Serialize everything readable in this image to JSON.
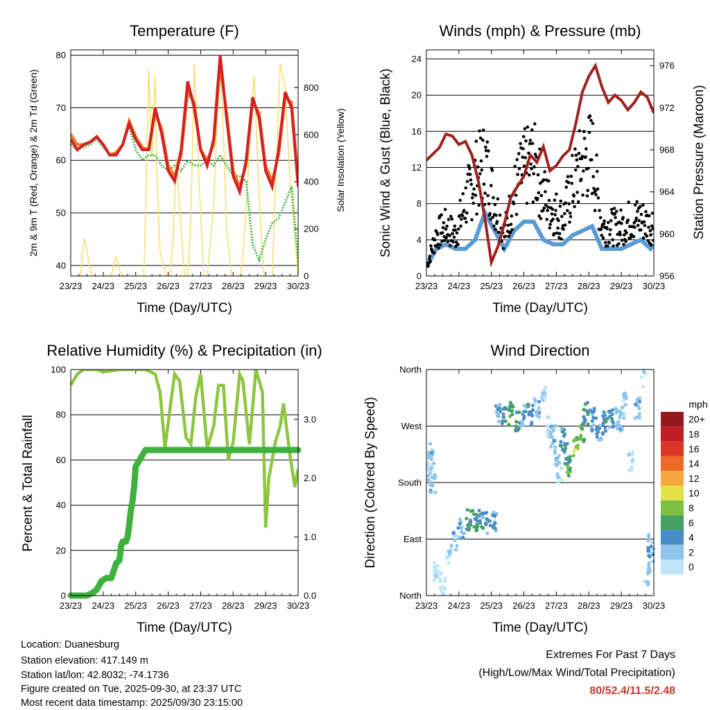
{
  "colors": {
    "temp2m": "#d42020",
    "temp9m": "#f07a2a",
    "dewpoint": "#3fb13f",
    "solar": "#f5e070",
    "wind": "#5a9bd4",
    "gust": "#000000",
    "pressure": "#a02020",
    "humidity": "#8cc63f",
    "precip": "#3fb13f",
    "extremes": "#c0392b"
  },
  "chart_data": [
    {
      "type": "line",
      "title": "Temperature (F)",
      "xlabel": "Time (Day/UTC)",
      "ylabel": "2m & 9m T (Red, Orange) & 2m Td (Green)",
      "y2label": "Solar Insolation (Yellow)",
      "x_ticks": [
        "23/23",
        "24/23",
        "25/23",
        "26/23",
        "27/23",
        "28/23",
        "29/23",
        "30/23"
      ],
      "xlim": [
        0,
        7
      ],
      "ylim": [
        38,
        81
      ],
      "y_ticks": [
        "40",
        "50",
        "60",
        "70",
        "80"
      ],
      "y_ticks_values": [
        40,
        50,
        60,
        70,
        80
      ],
      "y2lim": [
        0,
        960
      ],
      "y2_ticks": [
        "0",
        "200",
        "400",
        "600",
        "800"
      ],
      "y2_ticks_values": [
        0,
        200,
        400,
        600,
        800
      ],
      "series": [
        {
          "name": "2m T",
          "x": [
            0,
            0.2,
            0.4,
            0.6,
            0.8,
            1,
            1.2,
            1.4,
            1.6,
            1.8,
            2,
            2.2,
            2.4,
            2.6,
            2.8,
            3,
            3.2,
            3.4,
            3.6,
            3.8,
            4,
            4.2,
            4.4,
            4.6,
            4.8,
            5,
            5.2,
            5.4,
            5.6,
            5.8,
            6,
            6.2,
            6.4,
            6.6,
            6.8,
            7
          ],
          "values": [
            64,
            62,
            63,
            63.5,
            64.5,
            63,
            61,
            61,
            63,
            67,
            64,
            62,
            62,
            70,
            65,
            58,
            56,
            62,
            75,
            70,
            62,
            59,
            64,
            80,
            68,
            57,
            54,
            60,
            72,
            68,
            58,
            55,
            62,
            73,
            70,
            55
          ]
        },
        {
          "name": "9m T",
          "x": [
            0,
            0.2,
            0.4,
            0.6,
            0.8,
            1,
            1.2,
            1.4,
            1.6,
            1.8,
            2,
            2.2,
            2.4,
            2.6,
            2.8,
            3,
            3.2,
            3.4,
            3.6,
            3.8,
            4,
            4.2,
            4.4,
            4.6,
            4.8,
            5,
            5.2,
            5.4,
            5.6,
            5.8,
            6,
            6.2,
            6.4,
            6.6,
            6.8,
            7
          ],
          "values": [
            65,
            63,
            63,
            63.5,
            64.5,
            63,
            61,
            61.5,
            63,
            67.5,
            64.5,
            62.5,
            62,
            69,
            66,
            59,
            57,
            61,
            73,
            71,
            62,
            60,
            63,
            78,
            69,
            58,
            55,
            59,
            71,
            69,
            59,
            56,
            61,
            72,
            71,
            56
          ]
        },
        {
          "name": "2m Td",
          "x": [
            0,
            0.2,
            0.4,
            0.6,
            0.8,
            1,
            1.2,
            1.4,
            1.6,
            1.8,
            2,
            2.2,
            2.4,
            2.6,
            2.8,
            3,
            3.2,
            3.4,
            3.6,
            3.8,
            4,
            4.2,
            4.4,
            4.6,
            4.8,
            5,
            5.2,
            5.4,
            5.6,
            5.8,
            6,
            6.2,
            6.4,
            6.6,
            6.8,
            7
          ],
          "values": [
            63,
            62,
            62.5,
            63,
            64,
            62.5,
            61,
            61,
            63,
            66.5,
            62,
            60,
            61,
            61,
            59,
            58,
            59,
            58,
            60,
            59,
            59,
            60,
            59,
            61,
            59,
            57,
            57,
            56,
            44,
            41,
            45,
            48,
            49,
            52,
            55,
            41
          ]
        },
        {
          "name": "Solar",
          "axis": "y2",
          "x": [
            0.3,
            0.35,
            0.42,
            0.5,
            0.58,
            0.65,
            1.25,
            1.3,
            1.38,
            1.45,
            1.52,
            1.6,
            2.25,
            2.3,
            2.4,
            2.5,
            2.6,
            2.65,
            2.75,
            2.95,
            3.05,
            3.15,
            3.25,
            3.35,
            3.5,
            3.6,
            3.7,
            3.8,
            3.95,
            4.1,
            4.2,
            4.4,
            4.5,
            4.6,
            4.7,
            4.8,
            4.95,
            5.2,
            5.3,
            5.45,
            5.55,
            5.65,
            5.75,
            5.85,
            5.95,
            6.2,
            6.35,
            6.45,
            6.6,
            6.75,
            6.85,
            7
          ],
          "values": [
            0,
            80,
            160,
            110,
            40,
            0,
            0,
            30,
            80,
            60,
            20,
            0,
            0,
            250,
            880,
            500,
            850,
            420,
            100,
            0,
            0,
            150,
            500,
            300,
            0,
            0,
            250,
            900,
            400,
            0,
            0,
            300,
            650,
            900,
            600,
            200,
            0,
            0,
            80,
            400,
            700,
            850,
            500,
            200,
            0,
            0,
            550,
            900,
            800,
            400,
            250,
            0
          ]
        }
      ]
    },
    {
      "type": "line",
      "title": "Winds (mph) & Pressure (mb)",
      "xlabel": "Time (Day/UTC)",
      "ylabel": "Sonic Wind & Gust (Blue, Black)",
      "y2label": "Station Pressure (Maroon)",
      "x_ticks": [
        "23/23",
        "24/23",
        "25/23",
        "26/23",
        "27/23",
        "28/23",
        "29/23",
        "30/23"
      ],
      "xlim": [
        0,
        7
      ],
      "ylim": [
        0,
        25
      ],
      "y_ticks": [
        "0",
        "4",
        "8",
        "12",
        "16",
        "20",
        "24"
      ],
      "y_ticks_values": [
        0,
        4,
        8,
        12,
        16,
        20,
        24
      ],
      "y2lim": [
        956,
        977.5
      ],
      "y2_ticks": [
        "956",
        "960",
        "964",
        "968",
        "972",
        "976"
      ],
      "y2_ticks_values": [
        956,
        960,
        964,
        968,
        972,
        976
      ],
      "series": [
        {
          "name": "Sonic Wind",
          "x": [
            0,
            0.3,
            0.6,
            0.9,
            1.2,
            1.5,
            1.8,
            2.1,
            2.4,
            2.7,
            3.0,
            3.3,
            3.6,
            3.9,
            4.2,
            4.5,
            4.8,
            5.1,
            5.4,
            5.7,
            6.0,
            6.3,
            6.6,
            6.9,
            7
          ],
          "values": [
            1,
            3,
            3.5,
            3,
            3,
            4,
            7,
            5,
            3,
            5,
            6,
            6,
            4,
            3.5,
            3.5,
            4.5,
            5,
            5.5,
            3,
            3,
            3,
            3.5,
            4,
            3,
            3.5
          ]
        },
        {
          "name": "Gust",
          "x": [
            0,
            0.3,
            0.6,
            0.9,
            1.2,
            1.5,
            1.8,
            2.1,
            2.4,
            2.7,
            3.0,
            3.3,
            3.6,
            3.9,
            4.2,
            4.5,
            4.8,
            5.1,
            5.4,
            5.7,
            6.0,
            6.3,
            6.6,
            6.9,
            7
          ],
          "values": [
            1,
            5,
            6,
            5,
            9,
            12,
            14,
            9,
            5,
            10,
            13,
            14,
            10,
            8,
            7,
            11,
            14,
            15,
            6,
            6,
            6,
            7,
            7,
            6,
            7
          ]
        },
        {
          "name": "Pressure",
          "axis": "y2",
          "x": [
            0,
            0.2,
            0.4,
            0.6,
            0.8,
            1,
            1.2,
            1.4,
            1.6,
            1.8,
            2,
            2.2,
            2.4,
            2.6,
            2.8,
            3,
            3.2,
            3.4,
            3.6,
            3.8,
            4,
            4.2,
            4.4,
            4.6,
            4.8,
            5,
            5.2,
            5.4,
            5.6,
            5.8,
            6,
            6.2,
            6.4,
            6.6,
            6.8,
            7
          ],
          "values": [
            967,
            967.6,
            968.2,
            969.5,
            969.3,
            968.5,
            968.8,
            967.5,
            965,
            961.5,
            957.3,
            958.8,
            961,
            963.5,
            964.5,
            965.5,
            967.5,
            966.8,
            968.3,
            966,
            966.5,
            967.4,
            968,
            970.5,
            973.5,
            975,
            976,
            974,
            972.5,
            973.2,
            972.7,
            971.8,
            972.5,
            973.5,
            973,
            971.5
          ]
        }
      ]
    },
    {
      "type": "line",
      "title": "Relative Humidity (%) & Precipitation (in)",
      "xlabel": "Time (Day/UTC)",
      "ylabel": "Percent & Total Rainfall",
      "x_ticks": [
        "23/23",
        "24/23",
        "25/23",
        "26/23",
        "27/23",
        "28/23",
        "29/23",
        "30/23"
      ],
      "xlim": [
        0,
        7
      ],
      "ylim": [
        0,
        100
      ],
      "y_ticks": [
        "0",
        "20",
        "40",
        "60",
        "80",
        "100"
      ],
      "y_ticks_values": [
        0,
        20,
        40,
        60,
        80,
        100
      ],
      "y2lim": [
        0,
        3.85
      ],
      "y2_ticks": [
        "0.0",
        "1.0",
        "2.0",
        "3.0"
      ],
      "y2_ticks_values": [
        0,
        1,
        2,
        3
      ],
      "series": [
        {
          "name": "Relative Humidity",
          "x": [
            0,
            0.2,
            0.4,
            0.6,
            0.8,
            1,
            1.5,
            2,
            2.3,
            2.6,
            2.75,
            2.9,
            3.05,
            3.2,
            3.35,
            3.55,
            3.7,
            3.85,
            4,
            4.2,
            4.4,
            4.55,
            4.7,
            4.85,
            5,
            5.2,
            5.3,
            5.5,
            5.7,
            5.9,
            6,
            6.1,
            6.3,
            6.45,
            6.55,
            6.75,
            6.9,
            7
          ],
          "values": [
            93,
            98,
            100,
            100,
            100,
            99,
            100,
            100,
            100,
            98,
            90,
            65,
            82,
            98,
            95,
            70,
            67,
            88,
            98,
            65,
            75,
            93,
            93,
            60,
            68,
            98,
            95,
            67,
            100,
            90,
            30,
            52,
            68,
            75,
            85,
            62,
            48,
            56
          ]
        },
        {
          "name": "Total Rainfall",
          "axis": "y2",
          "x": [
            0,
            0.5,
            0.65,
            0.8,
            0.95,
            1.1,
            1.25,
            1.4,
            1.5,
            1.55,
            1.6,
            1.7,
            1.75,
            1.8,
            1.85,
            1.9,
            1.95,
            2.0,
            2.3,
            7
          ],
          "values": [
            0,
            0,
            0.04,
            0.1,
            0.25,
            0.3,
            0.3,
            0.55,
            0.6,
            0.85,
            0.92,
            0.92,
            1.0,
            1.2,
            1.45,
            1.6,
            1.85,
            2.2,
            2.48,
            2.48
          ]
        }
      ]
    },
    {
      "type": "scatter",
      "title": "Wind Direction",
      "xlabel": "Time (Day/UTC)",
      "ylabel": "Direction (Colored By Speed)",
      "x_ticks": [
        "23/23",
        "24/23",
        "25/23",
        "26/23",
        "27/23",
        "28/23",
        "29/23",
        "30/23"
      ],
      "xlim": [
        0,
        7
      ],
      "ylim": [
        0,
        360
      ],
      "y_ticks": [
        "North",
        "East",
        "South",
        "West",
        "North"
      ],
      "y_ticks_values": [
        0,
        90,
        180,
        270,
        360
      ],
      "colorbar": {
        "title": "mph",
        "labels": [
          "0",
          "2",
          "4",
          "6",
          "8",
          "10",
          "12",
          "14",
          "16",
          "18",
          "20+"
        ],
        "colors": [
          "#bfe6f7",
          "#8ec5ea",
          "#4a8cc8",
          "#44a060",
          "#7cc040",
          "#e5e24a",
          "#f6a83e",
          "#ef6a2a",
          "#db3628",
          "#c11f24",
          "#931a1c"
        ]
      },
      "series": [
        {
          "name": "Direction",
          "x": [
            0.05,
            0.1,
            0.15,
            0.2,
            0.3,
            0.5,
            0.7,
            0.9,
            1.1,
            1.3,
            1.5,
            1.7,
            1.9,
            2.1,
            2.2,
            2.4,
            2.6,
            2.8,
            3.0,
            3.2,
            3.4,
            3.6,
            3.8,
            3.9,
            4.0,
            4.1,
            4.2,
            4.3,
            4.4,
            4.6,
            4.8,
            4.9,
            5.1,
            5.3,
            5.5,
            5.7,
            5.9,
            6.0,
            6.1,
            6.3,
            6.5,
            6.7,
            6.8,
            6.9,
            7.0
          ],
          "values": [
            210,
            195,
            225,
            180,
            40,
            20,
            70,
            90,
            110,
            120,
            120,
            120,
            115,
            115,
            290,
            285,
            290,
            280,
            285,
            290,
            300,
            320,
            270,
            255,
            220,
            195,
            250,
            225,
            205,
            235,
            260,
            290,
            280,
            265,
            275,
            285,
            280,
            280,
            305,
            215,
            300,
            350,
            35,
            80,
            70
          ],
          "speeds": [
            1.5,
            2,
            3,
            3,
            1,
            0.5,
            2,
            3,
            3,
            6,
            6,
            5,
            5,
            4,
            4,
            5,
            7,
            6,
            4,
            5,
            3,
            2,
            2,
            3,
            3,
            2,
            5,
            6,
            7,
            9,
            8,
            6,
            4,
            4,
            5,
            5,
            3,
            3,
            2,
            1,
            3,
            2,
            3,
            4,
            3
          ]
        }
      ]
    }
  ],
  "info": {
    "location": "Location: Duanesburg",
    "elevation": "Station elevation: 417.149 m",
    "latlon": "Station lat/lon: 42.8032; -74.1736",
    "created": "Figure created on Tue, 2025-09-30, at 23:37 UTC",
    "recent": "Most recent data timestamp: 2025/09/30 23:15:00"
  },
  "extremes": {
    "title": "Extremes For Past 7 Days",
    "subtitle": "(High/Low/Max Wind/Total Precipitation)",
    "values": "80/52.4/11.5/2.48"
  }
}
